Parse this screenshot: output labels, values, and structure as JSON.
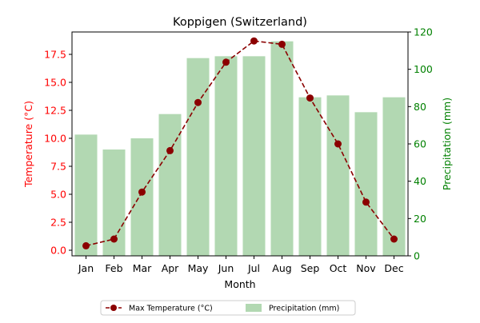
{
  "chart_data": {
    "type": "bar",
    "title": "Koppigen (Switzerland)",
    "xlabel": "Month",
    "ylabel_left": "Temperature (°C)",
    "ylabel_right": "Precipitation (mm)",
    "categories": [
      "Jan",
      "Feb",
      "Mar",
      "Apr",
      "May",
      "Jun",
      "Jul",
      "Aug",
      "Sep",
      "Oct",
      "Nov",
      "Dec"
    ],
    "left_axis": {
      "ylim": [
        -0.5,
        19.5
      ],
      "ticks": [
        0.0,
        2.5,
        5.0,
        7.5,
        10.0,
        12.5,
        15.0,
        17.5
      ],
      "tick_labels": [
        "0.0",
        "2.5",
        "5.0",
        "7.5",
        "10.0",
        "12.5",
        "15.0",
        "17.5"
      ],
      "color": "#ff0000"
    },
    "right_axis": {
      "ylim": [
        0,
        120
      ],
      "ticks": [
        0,
        20,
        40,
        60,
        80,
        100,
        120
      ],
      "tick_labels": [
        "0",
        "20",
        "40",
        "60",
        "80",
        "100",
        "120"
      ],
      "color": "#008000"
    },
    "series": [
      {
        "name": "Max Temperature (°C)",
        "type": "line",
        "axis": "left",
        "color": "#8b0000",
        "values": [
          0.4,
          1.0,
          5.2,
          8.9,
          13.2,
          16.8,
          18.7,
          18.4,
          13.6,
          9.5,
          4.3,
          1.0
        ]
      },
      {
        "name": "Precipitation (mm)",
        "type": "bar",
        "axis": "right",
        "color": "#b2d8b2",
        "values": [
          65,
          57,
          63,
          76,
          106,
          107,
          107,
          115,
          85,
          86,
          77,
          85
        ]
      }
    ],
    "grid": false,
    "legend": "bottom-center"
  }
}
